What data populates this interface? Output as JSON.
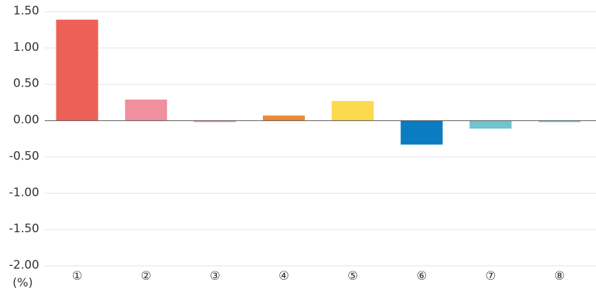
{
  "chart_data": {
    "type": "bar",
    "categories": [
      "①",
      "②",
      "③",
      "④",
      "⑤",
      "⑥",
      "⑦",
      "⑧"
    ],
    "values": [
      1.39,
      0.29,
      -0.02,
      0.07,
      0.27,
      -0.33,
      -0.11,
      -0.02
    ],
    "colors": [
      "#ec6055",
      "#f0909f",
      "#f0909f",
      "#ef8a32",
      "#fdd94e",
      "#0a7dc2",
      "#6ec4d0",
      "#7ac1e0"
    ],
    "ylim": [
      -2,
      1.5
    ],
    "yticks": [
      {
        "value": -2,
        "label": "-2.00"
      },
      {
        "value": -1.5,
        "label": "-1.50"
      },
      {
        "value": -1,
        "label": "-1.00"
      },
      {
        "value": -0.5,
        "label": "-0.50"
      },
      {
        "value": 0,
        "label": "0.00"
      },
      {
        "value": 0.5,
        "label": "0.50"
      },
      {
        "value": 1,
        "label": "1.00"
      },
      {
        "value": 1.5,
        "label": "1.50"
      }
    ],
    "y_unit": "(%)",
    "grid": true
  }
}
